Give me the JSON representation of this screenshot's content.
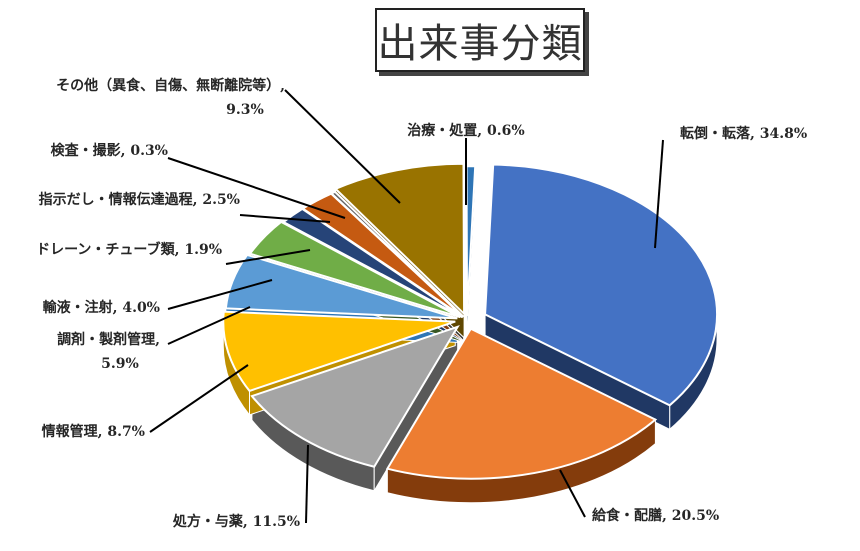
{
  "chart_data": {
    "type": "pie",
    "title": "出来事分類",
    "slices": [
      {
        "label": "転倒・転落",
        "value": 34.8,
        "display": "34.8%",
        "color": "#4472C4",
        "side": "#203864"
      },
      {
        "label": "給食・配膳",
        "value": 20.5,
        "display": "20.5%",
        "color": "#ED7D31",
        "side": "#843C0C"
      },
      {
        "label": "処方・与薬",
        "value": 11.5,
        "display": "11.5%",
        "color": "#A5A5A5",
        "side": "#595959"
      },
      {
        "label": "情報管理",
        "value": 8.7,
        "display": "8.7%",
        "color": "#FFC000",
        "side": "#BF9000"
      },
      {
        "label": "調剤・製剤管理",
        "value": 5.9,
        "display": "5.9%",
        "color": "#5B9BD5",
        "side": "#2E75B6"
      },
      {
        "label": "輸液・注射",
        "value": 4.0,
        "display": "4.0%",
        "color": "#70AD47",
        "side": "#385723"
      },
      {
        "label": "ドレーン・チューブ類",
        "value": 1.9,
        "display": "1.9%",
        "color": "#264478",
        "side": "#1F3864"
      },
      {
        "label": "指示だし・情報伝達過程",
        "value": 2.5,
        "display": "2.5%",
        "color": "#C55A11",
        "side": "#843C0C"
      },
      {
        "label": "検査・撮影",
        "value": 0.3,
        "display": "0.3%",
        "color": "#636363",
        "side": "#3A3A3A"
      },
      {
        "label": "その他（異食、自傷、無断離院等）",
        "value": 9.3,
        "display": "9.3%",
        "color": "#997300",
        "side": "#5F4700"
      },
      {
        "label": "治療・処置",
        "value": 0.6,
        "display": "0.6%",
        "color": "#2E75B6",
        "side": "#1F4E79"
      }
    ]
  }
}
